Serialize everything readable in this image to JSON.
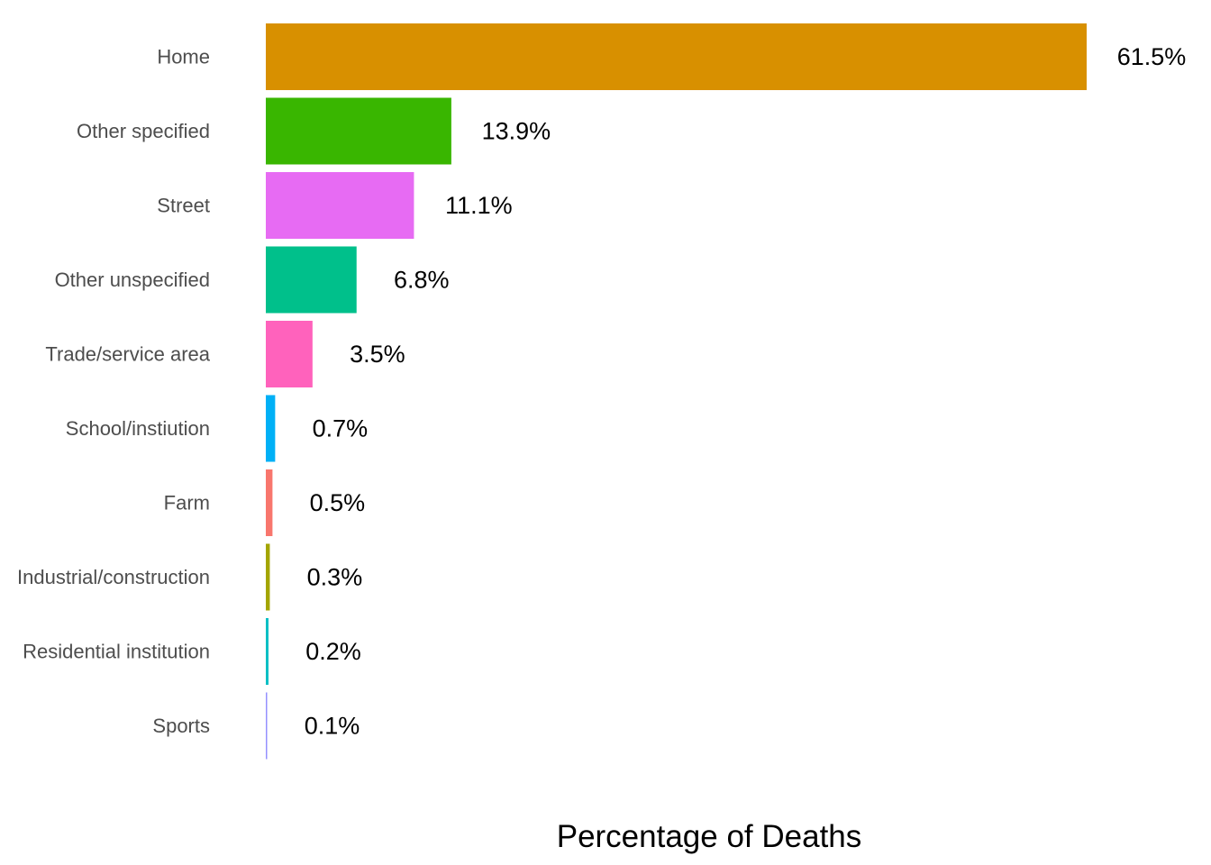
{
  "chart_data": {
    "type": "bar",
    "orientation": "horizontal",
    "title": "",
    "xlabel": "Percentage of Deaths",
    "ylabel": "",
    "grid": false,
    "legend": "none",
    "xlim": [
      0,
      61.5
    ],
    "categories": [
      "Home",
      "Other specified",
      "Street",
      "Other unspecified",
      "Trade/service area",
      "School/instiution",
      "Farm",
      "Industrial/construction",
      "Residential institution",
      "Sports"
    ],
    "values": [
      61.5,
      13.9,
      11.1,
      6.8,
      3.5,
      0.7,
      0.5,
      0.3,
      0.2,
      0.1
    ],
    "value_labels": [
      "61.5%",
      "13.9%",
      "11.1%",
      "6.8%",
      "3.5%",
      "0.7%",
      "0.5%",
      "0.3%",
      "0.2%",
      "0.1%"
    ],
    "colors": [
      "#D89000",
      "#39B600",
      "#E76BF3",
      "#00C08B",
      "#FF62BC",
      "#00B0F6",
      "#F8766D",
      "#A3A500",
      "#00BFC4",
      "#9590FF"
    ]
  }
}
